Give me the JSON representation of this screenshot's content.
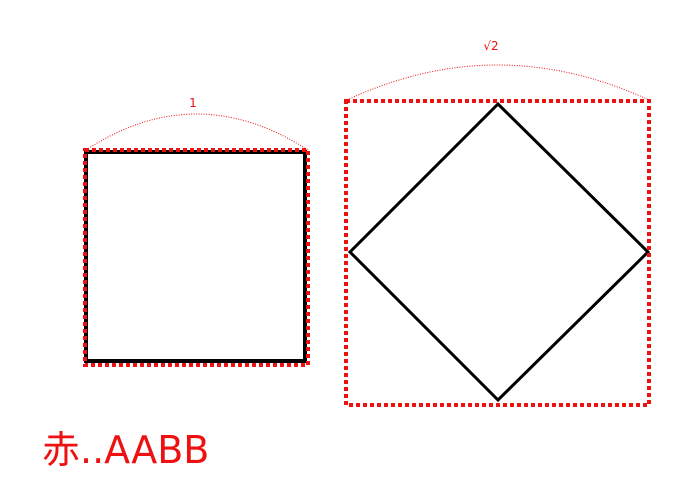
{
  "colors": {
    "accent_red": "#ee1111",
    "shape_black": "#000000",
    "background": "#ffffff"
  },
  "left_figure": {
    "square_label": "1"
  },
  "right_figure": {
    "diamond_label": "√2"
  },
  "legend": {
    "caption": "赤..AABB"
  }
}
